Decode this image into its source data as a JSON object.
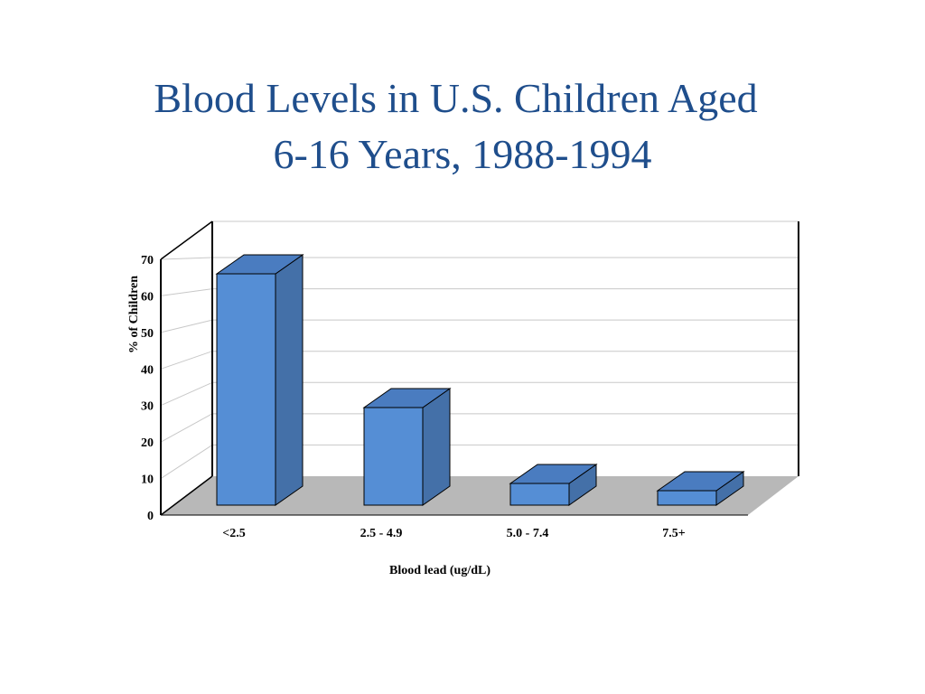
{
  "title": {
    "line1": "Blood Levels in U.S. Children Aged",
    "line2": "6-16 Years, 1988-1994"
  },
  "chart_data": {
    "type": "bar",
    "title": "Blood Levels in U.S. Children Aged 6-16 Years, 1988-1994",
    "xlabel": "Blood lead (ug/dL)",
    "ylabel": "%  of  Children",
    "categories": [
      "<2.5",
      "2.5 - 4.9",
      "5.0 - 7.4",
      "7.5+"
    ],
    "values": [
      64,
      27,
      6,
      4
    ],
    "ylim": [
      0,
      70
    ],
    "yticks": [
      "0",
      "10",
      "20",
      "30",
      "40",
      "50",
      "60",
      "70"
    ],
    "grid": true,
    "three_d": true,
    "colors": {
      "bar_front": "#558ed5",
      "bar_side": "#4470a8",
      "bar_top": "#4a7cc0",
      "floor": "#b8b8b8",
      "grid": "#c8c8c8"
    }
  }
}
